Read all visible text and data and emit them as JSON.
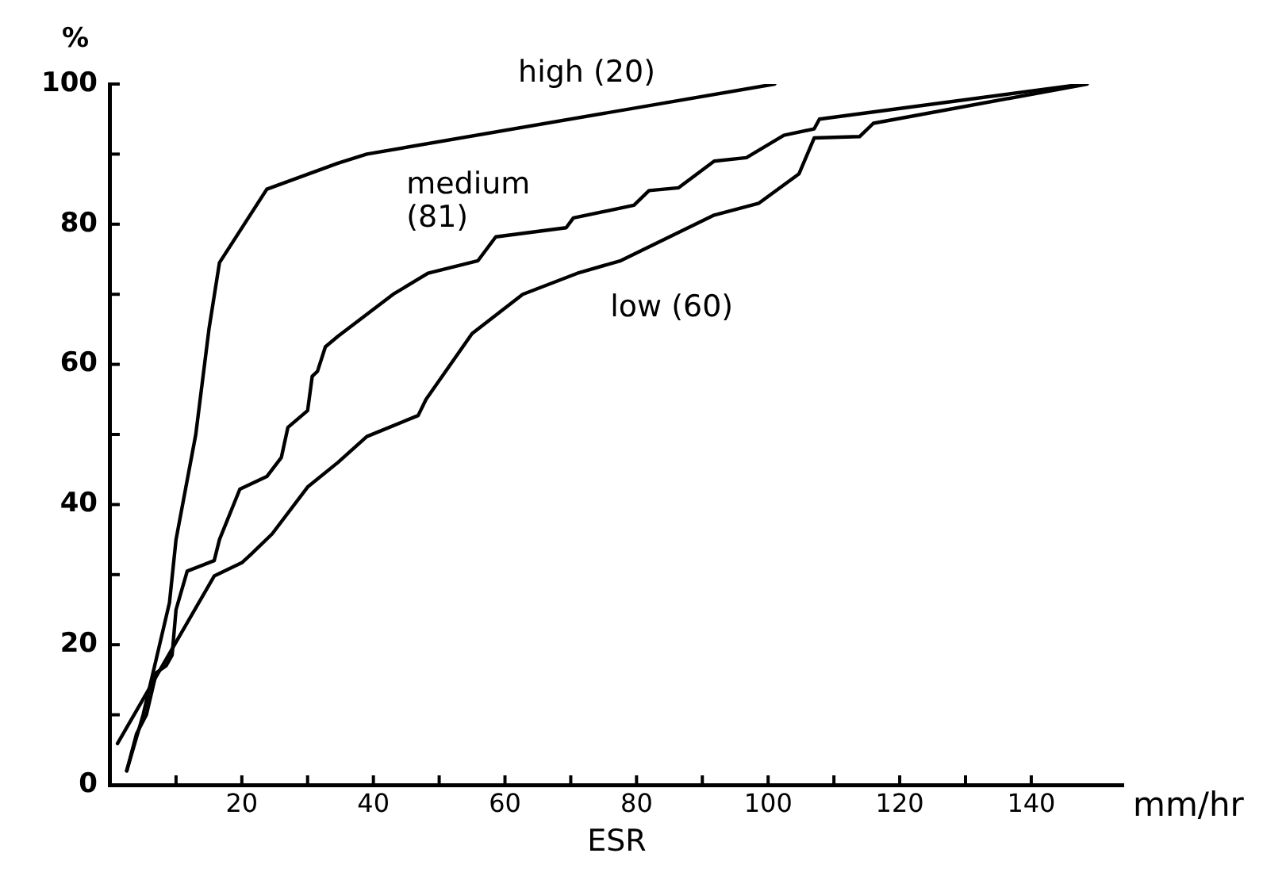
{
  "chart_data": {
    "type": "line",
    "xlabel": "ESR",
    "ylabel": "%",
    "annotations": [
      "mm/hr"
    ],
    "xlim": [
      0,
      154
    ],
    "ylim": [
      0,
      100
    ],
    "xticks": [
      {
        "value": 0,
        "label": null
      },
      {
        "value": 10,
        "label": null
      },
      20,
      {
        "value": 30,
        "label": null
      },
      40,
      {
        "value": 50,
        "label": null
      },
      60,
      {
        "value": 70,
        "label": null
      },
      80,
      {
        "value": 90,
        "label": null
      },
      100,
      {
        "value": 110,
        "label": null
      },
      120,
      {
        "value": 130,
        "label": null
      },
      140
    ],
    "yticks": [
      0,
      {
        "value": 10,
        "label": null
      },
      20,
      {
        "value": 30,
        "label": null
      },
      40,
      {
        "value": 50,
        "label": null
      },
      60,
      {
        "value": 70,
        "label": null
      },
      80,
      {
        "value": 90,
        "label": null
      },
      100
    ],
    "grid": false,
    "legend": false,
    "marker": "none",
    "line_style": "solid",
    "series": [
      {
        "name": "high (20)",
        "color": "#000000",
        "x": [
          2.5,
          5,
          7,
          9,
          10,
          13,
          15,
          16.6,
          23.8,
          34.6,
          39,
          101
        ],
        "values": [
          2,
          10,
          18,
          26,
          35,
          50,
          65,
          74.5,
          85,
          88.7,
          90,
          100
        ]
      },
      {
        "name": "medium (81)",
        "color": "#000000",
        "x": [
          2.5,
          4,
          5.5,
          7,
          8.5,
          9.4,
          10,
          11.7,
          15.8,
          16.6,
          19.7,
          23.8,
          26,
          27,
          30,
          30.7,
          31.5,
          32.7,
          34.6,
          43,
          48.3,
          55.9,
          58.6,
          69.3,
          70.4,
          79.6,
          81.9,
          86.4,
          91.8,
          96.7,
          102.4,
          107,
          107.8,
          148
        ],
        "values": [
          2,
          7.3,
          10,
          16,
          17,
          18.5,
          25,
          30.5,
          32,
          35,
          42.2,
          44,
          46.7,
          51,
          53.4,
          58.3,
          59,
          62.5,
          64,
          70,
          73,
          74.8,
          78.2,
          79.5,
          80.9,
          82.7,
          84.8,
          85.2,
          89,
          89.5,
          92.7,
          93.6,
          95,
          100
        ]
      },
      {
        "name": "low (60)",
        "color": "#000000",
        "x": [
          1.1,
          15.8,
          20,
          21.5,
          24.6,
          30,
          34.6,
          39,
          46.8,
          48,
          55,
          62.7,
          71,
          77.6,
          91.8,
          98.6,
          104.7,
          107,
          113.9,
          116,
          148.5
        ],
        "values": [
          5.9,
          29.8,
          31.7,
          33,
          35.8,
          42.5,
          46,
          49.7,
          52.7,
          55,
          64.4,
          70,
          73,
          74.8,
          81.3,
          83,
          87.2,
          92.3,
          92.5,
          94.4,
          100
        ]
      }
    ]
  }
}
